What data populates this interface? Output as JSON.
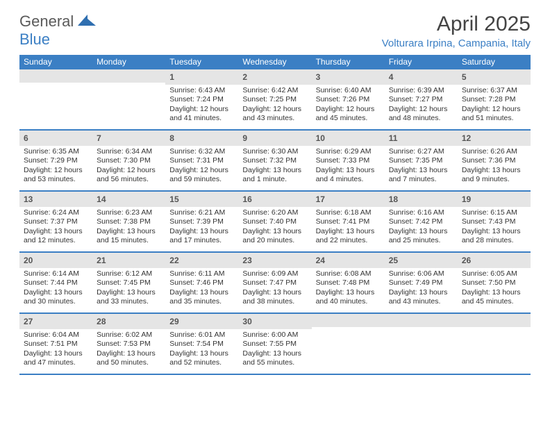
{
  "logo": {
    "text_gray": "General",
    "text_blue": "Blue",
    "icon_color": "#2f6fb0"
  },
  "title": "April 2025",
  "location": "Volturara Irpina, Campania, Italy",
  "colors": {
    "header_bar": "#3b7fc4",
    "daynum_bg": "#e5e5e5",
    "week_divider": "#3b7fc4",
    "text": "#333333",
    "logo_gray": "#5a5a5a",
    "logo_blue": "#3b7fc4"
  },
  "weekdays": [
    "Sunday",
    "Monday",
    "Tuesday",
    "Wednesday",
    "Thursday",
    "Friday",
    "Saturday"
  ],
  "weeks": [
    [
      {
        "n": "",
        "sr": "",
        "ss": "",
        "dl": ""
      },
      {
        "n": "",
        "sr": "",
        "ss": "",
        "dl": ""
      },
      {
        "n": "1",
        "sr": "Sunrise: 6:43 AM",
        "ss": "Sunset: 7:24 PM",
        "dl": "Daylight: 12 hours and 41 minutes."
      },
      {
        "n": "2",
        "sr": "Sunrise: 6:42 AM",
        "ss": "Sunset: 7:25 PM",
        "dl": "Daylight: 12 hours and 43 minutes."
      },
      {
        "n": "3",
        "sr": "Sunrise: 6:40 AM",
        "ss": "Sunset: 7:26 PM",
        "dl": "Daylight: 12 hours and 45 minutes."
      },
      {
        "n": "4",
        "sr": "Sunrise: 6:39 AM",
        "ss": "Sunset: 7:27 PM",
        "dl": "Daylight: 12 hours and 48 minutes."
      },
      {
        "n": "5",
        "sr": "Sunrise: 6:37 AM",
        "ss": "Sunset: 7:28 PM",
        "dl": "Daylight: 12 hours and 51 minutes."
      }
    ],
    [
      {
        "n": "6",
        "sr": "Sunrise: 6:35 AM",
        "ss": "Sunset: 7:29 PM",
        "dl": "Daylight: 12 hours and 53 minutes."
      },
      {
        "n": "7",
        "sr": "Sunrise: 6:34 AM",
        "ss": "Sunset: 7:30 PM",
        "dl": "Daylight: 12 hours and 56 minutes."
      },
      {
        "n": "8",
        "sr": "Sunrise: 6:32 AM",
        "ss": "Sunset: 7:31 PM",
        "dl": "Daylight: 12 hours and 59 minutes."
      },
      {
        "n": "9",
        "sr": "Sunrise: 6:30 AM",
        "ss": "Sunset: 7:32 PM",
        "dl": "Daylight: 13 hours and 1 minute."
      },
      {
        "n": "10",
        "sr": "Sunrise: 6:29 AM",
        "ss": "Sunset: 7:33 PM",
        "dl": "Daylight: 13 hours and 4 minutes."
      },
      {
        "n": "11",
        "sr": "Sunrise: 6:27 AM",
        "ss": "Sunset: 7:35 PM",
        "dl": "Daylight: 13 hours and 7 minutes."
      },
      {
        "n": "12",
        "sr": "Sunrise: 6:26 AM",
        "ss": "Sunset: 7:36 PM",
        "dl": "Daylight: 13 hours and 9 minutes."
      }
    ],
    [
      {
        "n": "13",
        "sr": "Sunrise: 6:24 AM",
        "ss": "Sunset: 7:37 PM",
        "dl": "Daylight: 13 hours and 12 minutes."
      },
      {
        "n": "14",
        "sr": "Sunrise: 6:23 AM",
        "ss": "Sunset: 7:38 PM",
        "dl": "Daylight: 13 hours and 15 minutes."
      },
      {
        "n": "15",
        "sr": "Sunrise: 6:21 AM",
        "ss": "Sunset: 7:39 PM",
        "dl": "Daylight: 13 hours and 17 minutes."
      },
      {
        "n": "16",
        "sr": "Sunrise: 6:20 AM",
        "ss": "Sunset: 7:40 PM",
        "dl": "Daylight: 13 hours and 20 minutes."
      },
      {
        "n": "17",
        "sr": "Sunrise: 6:18 AM",
        "ss": "Sunset: 7:41 PM",
        "dl": "Daylight: 13 hours and 22 minutes."
      },
      {
        "n": "18",
        "sr": "Sunrise: 6:16 AM",
        "ss": "Sunset: 7:42 PM",
        "dl": "Daylight: 13 hours and 25 minutes."
      },
      {
        "n": "19",
        "sr": "Sunrise: 6:15 AM",
        "ss": "Sunset: 7:43 PM",
        "dl": "Daylight: 13 hours and 28 minutes."
      }
    ],
    [
      {
        "n": "20",
        "sr": "Sunrise: 6:14 AM",
        "ss": "Sunset: 7:44 PM",
        "dl": "Daylight: 13 hours and 30 minutes."
      },
      {
        "n": "21",
        "sr": "Sunrise: 6:12 AM",
        "ss": "Sunset: 7:45 PM",
        "dl": "Daylight: 13 hours and 33 minutes."
      },
      {
        "n": "22",
        "sr": "Sunrise: 6:11 AM",
        "ss": "Sunset: 7:46 PM",
        "dl": "Daylight: 13 hours and 35 minutes."
      },
      {
        "n": "23",
        "sr": "Sunrise: 6:09 AM",
        "ss": "Sunset: 7:47 PM",
        "dl": "Daylight: 13 hours and 38 minutes."
      },
      {
        "n": "24",
        "sr": "Sunrise: 6:08 AM",
        "ss": "Sunset: 7:48 PM",
        "dl": "Daylight: 13 hours and 40 minutes."
      },
      {
        "n": "25",
        "sr": "Sunrise: 6:06 AM",
        "ss": "Sunset: 7:49 PM",
        "dl": "Daylight: 13 hours and 43 minutes."
      },
      {
        "n": "26",
        "sr": "Sunrise: 6:05 AM",
        "ss": "Sunset: 7:50 PM",
        "dl": "Daylight: 13 hours and 45 minutes."
      }
    ],
    [
      {
        "n": "27",
        "sr": "Sunrise: 6:04 AM",
        "ss": "Sunset: 7:51 PM",
        "dl": "Daylight: 13 hours and 47 minutes."
      },
      {
        "n": "28",
        "sr": "Sunrise: 6:02 AM",
        "ss": "Sunset: 7:53 PM",
        "dl": "Daylight: 13 hours and 50 minutes."
      },
      {
        "n": "29",
        "sr": "Sunrise: 6:01 AM",
        "ss": "Sunset: 7:54 PM",
        "dl": "Daylight: 13 hours and 52 minutes."
      },
      {
        "n": "30",
        "sr": "Sunrise: 6:00 AM",
        "ss": "Sunset: 7:55 PM",
        "dl": "Daylight: 13 hours and 55 minutes."
      },
      {
        "n": "",
        "sr": "",
        "ss": "",
        "dl": ""
      },
      {
        "n": "",
        "sr": "",
        "ss": "",
        "dl": ""
      },
      {
        "n": "",
        "sr": "",
        "ss": "",
        "dl": ""
      }
    ]
  ]
}
